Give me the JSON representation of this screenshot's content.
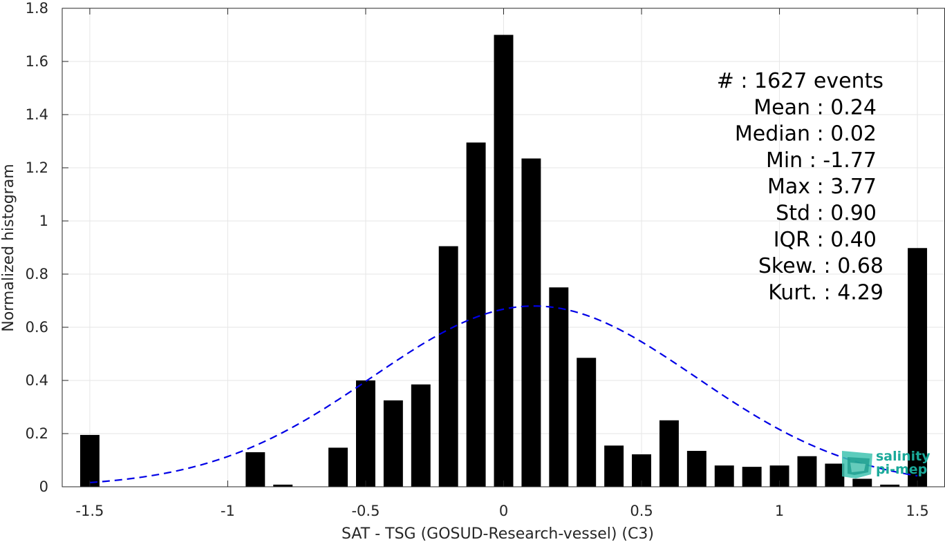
{
  "chart_data": {
    "type": "bar",
    "xlabel": "SAT - TSG (GOSUD-Research-vessel) (C3)",
    "ylabel": "Normalized histogram",
    "xlim": [
      -1.6,
      1.6
    ],
    "ylim": [
      0,
      1.8
    ],
    "xticks": [
      -1.5,
      -1,
      -0.5,
      0,
      0.5,
      1,
      1.5
    ],
    "xtick_labels": [
      "-1.5",
      "-1",
      "-0.5",
      "0",
      "0.5",
      "1",
      "1.5"
    ],
    "yticks": [
      0,
      0.2,
      0.4,
      0.6,
      0.8,
      1,
      1.2,
      1.4,
      1.6,
      1.8
    ],
    "ytick_labels": [
      "0",
      "0.2",
      "0.4",
      "0.6",
      "0.8",
      "1",
      "1.2",
      "1.4",
      "1.6",
      "1.8"
    ],
    "grid": true,
    "bar_width": 0.07,
    "bars": [
      {
        "x": -1.5,
        "y": 0.195
      },
      {
        "x": -0.9,
        "y": 0.13
      },
      {
        "x": -0.8,
        "y": 0.008
      },
      {
        "x": -0.6,
        "y": 0.147
      },
      {
        "x": -0.5,
        "y": 0.4
      },
      {
        "x": -0.4,
        "y": 0.325
      },
      {
        "x": -0.3,
        "y": 0.385
      },
      {
        "x": -0.2,
        "y": 0.905
      },
      {
        "x": -0.1,
        "y": 1.295
      },
      {
        "x": 0.0,
        "y": 1.7
      },
      {
        "x": 0.1,
        "y": 1.235
      },
      {
        "x": 0.2,
        "y": 0.75
      },
      {
        "x": 0.3,
        "y": 0.485
      },
      {
        "x": 0.4,
        "y": 0.155
      },
      {
        "x": 0.5,
        "y": 0.122
      },
      {
        "x": 0.6,
        "y": 0.25
      },
      {
        "x": 0.7,
        "y": 0.135
      },
      {
        "x": 0.8,
        "y": 0.08
      },
      {
        "x": 0.9,
        "y": 0.075
      },
      {
        "x": 1.0,
        "y": 0.08
      },
      {
        "x": 1.1,
        "y": 0.115
      },
      {
        "x": 1.2,
        "y": 0.087
      },
      {
        "x": 1.3,
        "y": 0.03
      },
      {
        "x": 1.4,
        "y": 0.008
      },
      {
        "x": 1.5,
        "y": 0.898
      }
    ],
    "gaussian_fit": {
      "mean": 0.11,
      "std": 0.587,
      "peak": 0.68,
      "x_range": [
        -1.5,
        1.5
      ],
      "color": "#0000e6",
      "style": "dashed"
    },
    "bar_color": "#000000",
    "annotation_lines": [
      "#  : 1627 events",
      "Mean : 0.24",
      "Median : 0.02",
      "Min : -1.77",
      "Max : 3.77",
      "Std : 0.90",
      "IQR : 0.40",
      "Skew. : 0.68",
      "Kurt. : 4.29"
    ]
  },
  "logo": {
    "line1": "salinity",
    "line2": "pi-mep",
    "color": "#1aa99a"
  }
}
